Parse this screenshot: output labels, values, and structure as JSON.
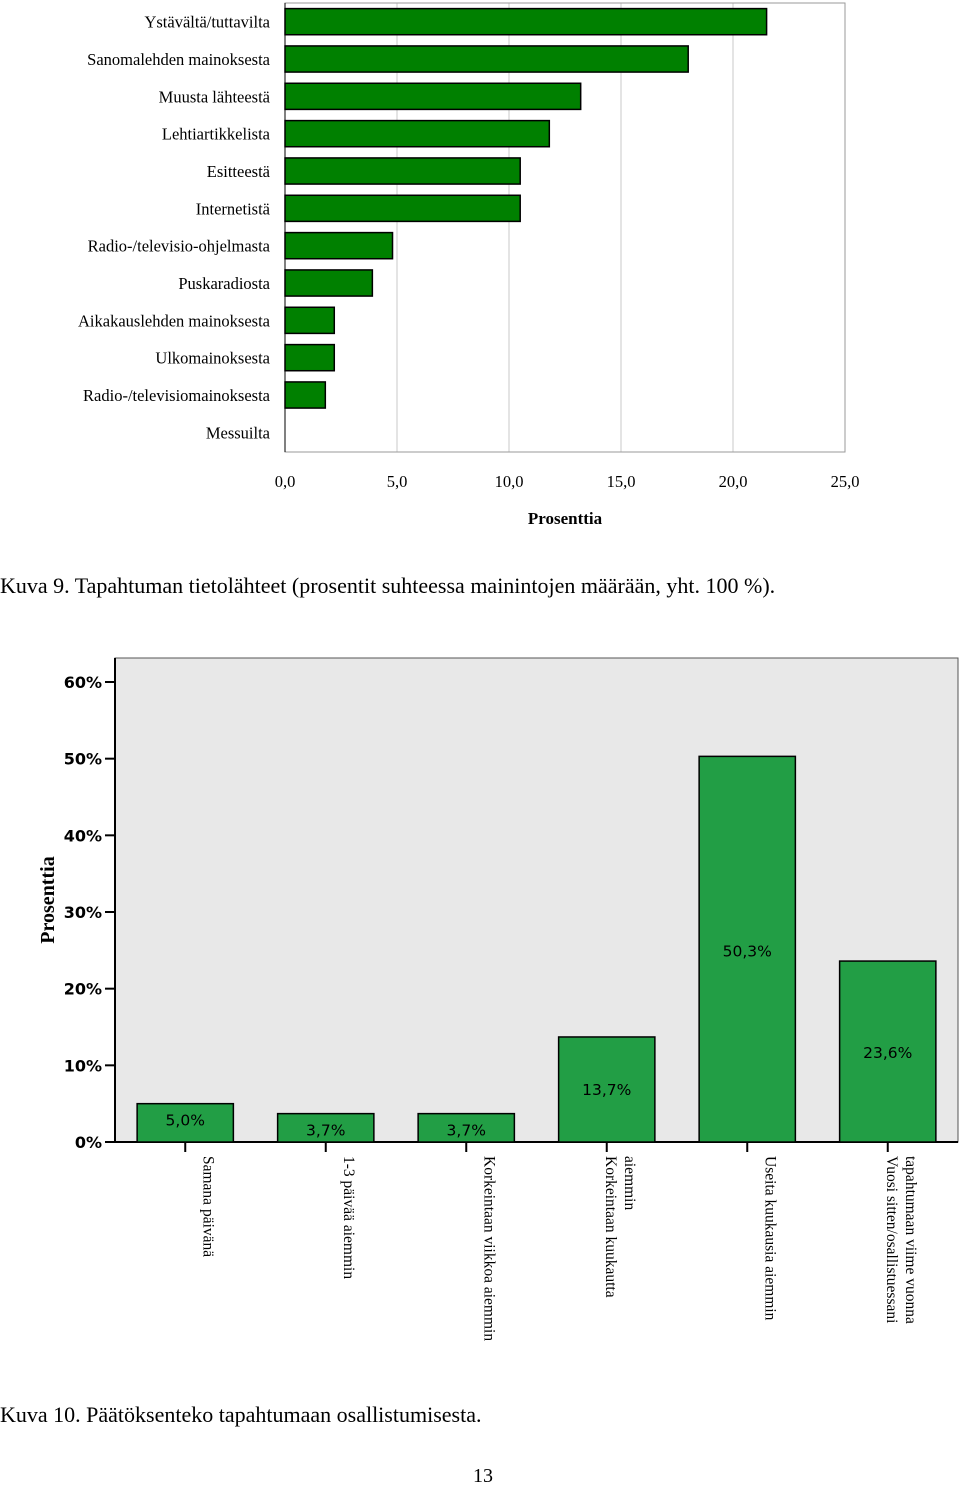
{
  "figures": [
    {
      "caption": "Kuva 9. Tapahtuman tietolähteet (prosentit suhteessa mainintojen määrään, yht. 100 %)."
    },
    {
      "caption": "Kuva 10. Päätöksenteko tapahtumaan osallistumisesta."
    }
  ],
  "page_number": "13",
  "colors": {
    "bar_fill_1": "#008000",
    "bar_fill_2": "#229e45",
    "plot_bg_2": "#e8e8e8",
    "grid": "#c8c8c8"
  },
  "chart_data": [
    {
      "type": "bar",
      "orientation": "horizontal",
      "categories": [
        "Ystävältä/tuttavilta",
        "Sanomalehden mainoksesta",
        "Muusta lähteestä",
        "Lehtiartikkelista",
        "Esitteestä",
        "Internetistä",
        "Radio-/televisio-ohjelmasta",
        "Puskaradiosta",
        "Aikakauslehden mainoksesta",
        "Ulkomainoksesta",
        "Radio-/televisiomainoksesta",
        "Messuilta"
      ],
      "values": [
        21.5,
        18.0,
        13.2,
        11.8,
        10.5,
        10.5,
        4.8,
        3.9,
        2.2,
        2.2,
        1.8,
        0.0
      ],
      "xlabel": "Prosenttia",
      "ylabel": "",
      "xlim": [
        0,
        25
      ],
      "xticks": [
        "0,0",
        "5,0",
        "10,0",
        "15,0",
        "20,0",
        "25,0"
      ],
      "grid": "vertical"
    },
    {
      "type": "bar",
      "orientation": "vertical",
      "categories": [
        [
          "Samana päivänä"
        ],
        [
          "1-3 päivää aiemmin"
        ],
        [
          "Korkeintaan viikkoa aiemmin"
        ],
        [
          "Korkeintaan kuukautta",
          "aiemmin"
        ],
        [
          "Useita kuukausia aiemmin"
        ],
        [
          "Vuosi sitten/osallistuessani",
          "tapahtumaan viime vuonna"
        ]
      ],
      "values": [
        5.0,
        3.7,
        3.7,
        13.7,
        50.3,
        23.6
      ],
      "data_labels": [
        "5,0%",
        "3,7%",
        "3,7%",
        "13,7%",
        "50,3%",
        "23,6%"
      ],
      "ylabel": "Prosenttia",
      "xlabel": "",
      "ylim": [
        0,
        60
      ],
      "yticks": [
        "0%",
        "10%",
        "20%",
        "30%",
        "40%",
        "50%",
        "60%"
      ],
      "grid": "none"
    }
  ]
}
